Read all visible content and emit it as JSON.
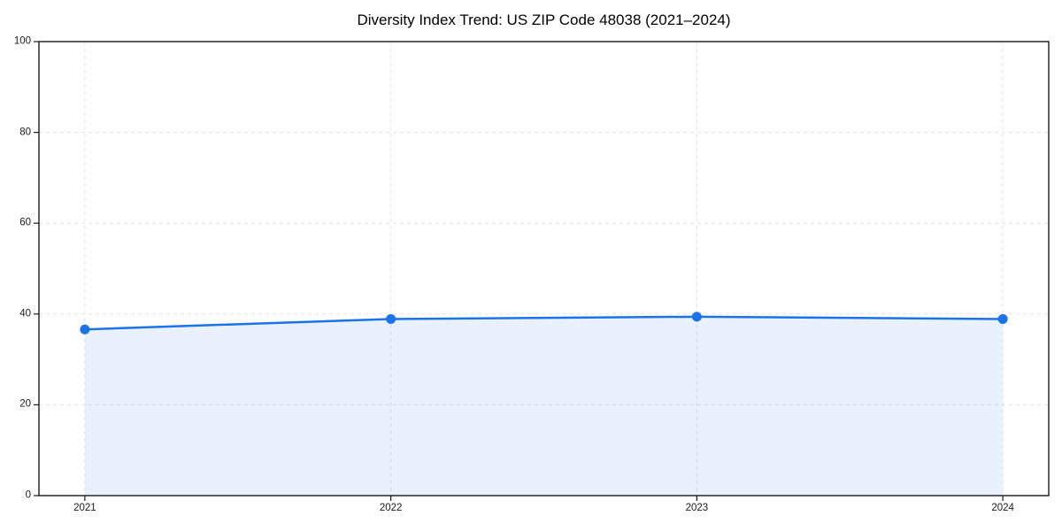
{
  "chart_data": {
    "type": "line",
    "title": "Diversity Index Trend: US ZIP Code 48038 (2021–2024)",
    "x": [
      2021,
      2022,
      2023,
      2024
    ],
    "categories": [
      "2021",
      "2022",
      "2023",
      "2024"
    ],
    "series": [
      {
        "name": "Diversity Index",
        "values": [
          36.6,
          38.9,
          39.4,
          38.9
        ]
      }
    ],
    "xlabel": "",
    "ylabel": "",
    "xlim": [
      2020.85,
      2024.15
    ],
    "ylim": [
      0,
      100
    ],
    "yticks": [
      0,
      20,
      40,
      60,
      80,
      100
    ],
    "grid": true,
    "grid_style": "dashed",
    "legend": false,
    "area_fill": true,
    "colors": {
      "line": "#1a73e8",
      "marker": "#1a73e8",
      "area": "rgba(26,115,232,0.10)",
      "grid": "#e3e3e3",
      "frame": "#1a1a1a",
      "tick_text": "#1a1a1a",
      "title_text": "#000000"
    }
  }
}
